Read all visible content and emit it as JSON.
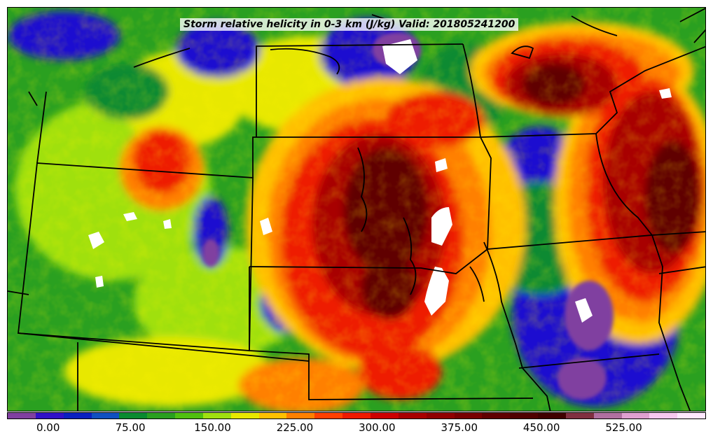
{
  "title": "Storm relative helicity in 0-3 km (J/kg) Valid: 201805241200",
  "colorbar": {
    "colors": [
      "#8040a0",
      "#3010c8",
      "#0a20c0",
      "#1050c0",
      "#0a8a30",
      "#2aa020",
      "#50c010",
      "#a0e010",
      "#e8e800",
      "#ffc000",
      "#ff8000",
      "#ff4000",
      "#ee1a00",
      "#cc0000",
      "#a80000",
      "#900000",
      "#780000",
      "#600000",
      "#500000",
      "#400000",
      "#803040",
      "#b070a0",
      "#e0a0d0",
      "#f8c8f0",
      "#ffe8ff"
    ],
    "tick_labels": [
      "0.00",
      "75.00",
      "150.00",
      "225.00",
      "300.00",
      "375.00",
      "450.00",
      "525.00"
    ],
    "tick_values": [
      0,
      75,
      150,
      225,
      300,
      375,
      450,
      525
    ],
    "range": [
      -37.5,
      600
    ]
  },
  "field_colors": {
    "purple": "#8040a0",
    "blue": "#1a10d0",
    "green": "#0a8a30",
    "lime": "#50c010",
    "yellow": "#e8e800",
    "orange": "#ff8000",
    "red": "#ee1a00",
    "darkred": "#a80000",
    "maroon": "#600000",
    "white": "#ffffff",
    "pink": "#f8c8f0"
  }
}
